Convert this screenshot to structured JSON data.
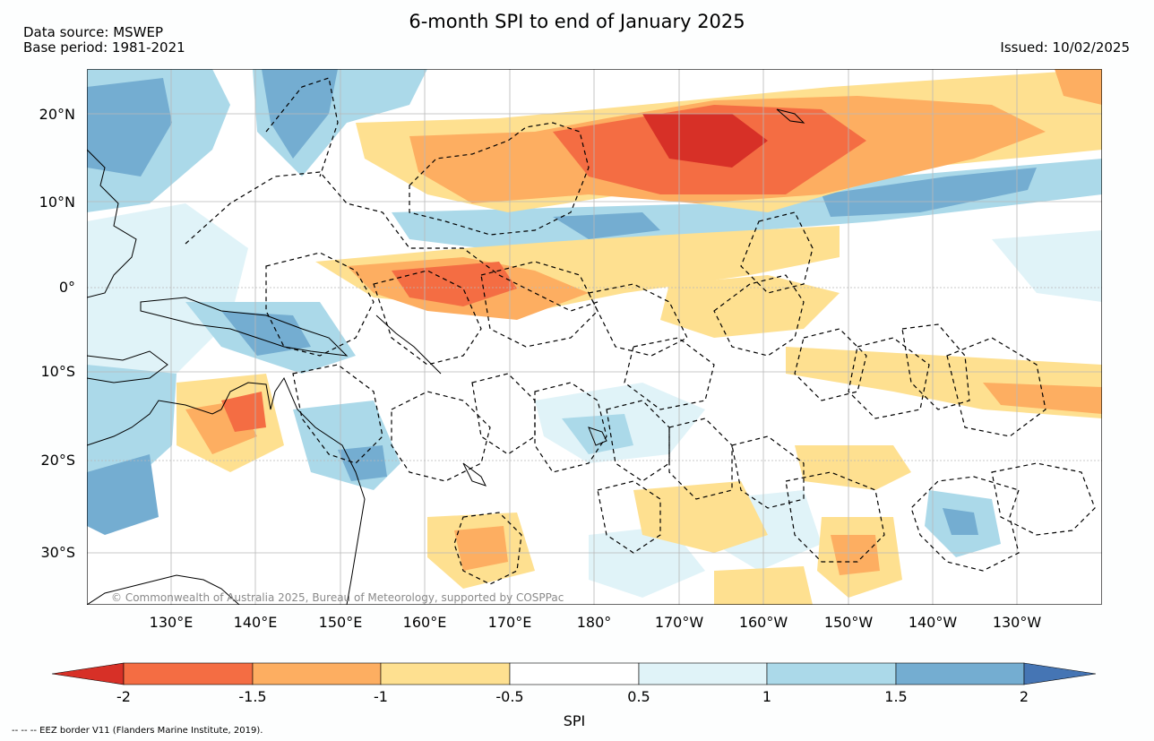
{
  "title": "6-month SPI to end of January 2025",
  "meta": {
    "data_source": "Data source: MSWEP",
    "base_period": "Base period: 1981-2021",
    "issued": "Issued: 10/02/2025"
  },
  "map": {
    "lat_labels": [
      "20°N",
      "10°N",
      "0°",
      "10°S",
      "20°S",
      "30°S"
    ],
    "lon_labels": [
      "130°E",
      "140°E",
      "150°E",
      "160°E",
      "170°E",
      "180°",
      "170°W",
      "160°W",
      "150°W",
      "140°W",
      "130°W"
    ],
    "credit": "© Commonwealth of Australia 2025, Bureau of Meteorology, supported by COSPPac"
  },
  "colorbar": {
    "label": "SPI",
    "ticks": [
      "-2",
      "-1.5",
      "-1",
      "-0.5",
      "0.5",
      "1",
      "1.5",
      "2"
    ],
    "colors": {
      "lt_neg2": "#d73027",
      "neg2_to_neg1_5": "#f46d43",
      "neg1_5_to_neg1": "#fdae61",
      "neg1_to_neg0_5": "#fee090",
      "neg0_5_to_0_5": "#ffffff",
      "p0_5_to_1": "#e0f3f8",
      "p1_to_1_5": "#abd9e9",
      "p1_5_to_2": "#74add1",
      "gt_2": "#4575b4"
    }
  },
  "footnote": "--  --  -- EEZ border V11 (Flanders Marine Institute, 2019)."
}
